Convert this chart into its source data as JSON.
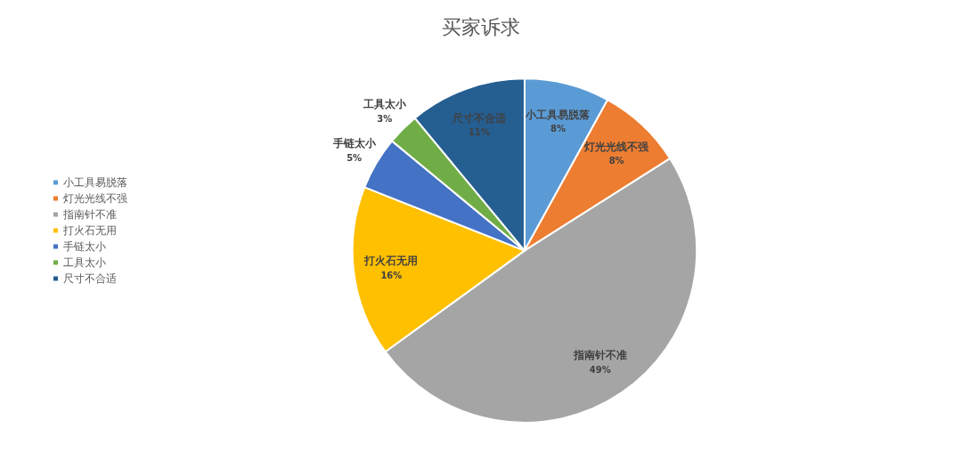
{
  "chart_data": {
    "type": "pie",
    "title": "买家诉求",
    "categories": [
      "小工具易脱落",
      "灯光光线不强",
      "指南针不准",
      "打火石无用",
      "手链太小",
      "工具太小",
      "尺寸不合适"
    ],
    "values": [
      8,
      8,
      49,
      16,
      5,
      3,
      11
    ],
    "value_labels": [
      "8%",
      "8%",
      "49%",
      "16%",
      "5%",
      "3%",
      "11%"
    ],
    "colors": [
      "#5b9bd5",
      "#ed7d31",
      "#a5a5a5",
      "#ffc000",
      "#4472c4",
      "#70ad47",
      "#255e91"
    ],
    "legend": "left"
  }
}
